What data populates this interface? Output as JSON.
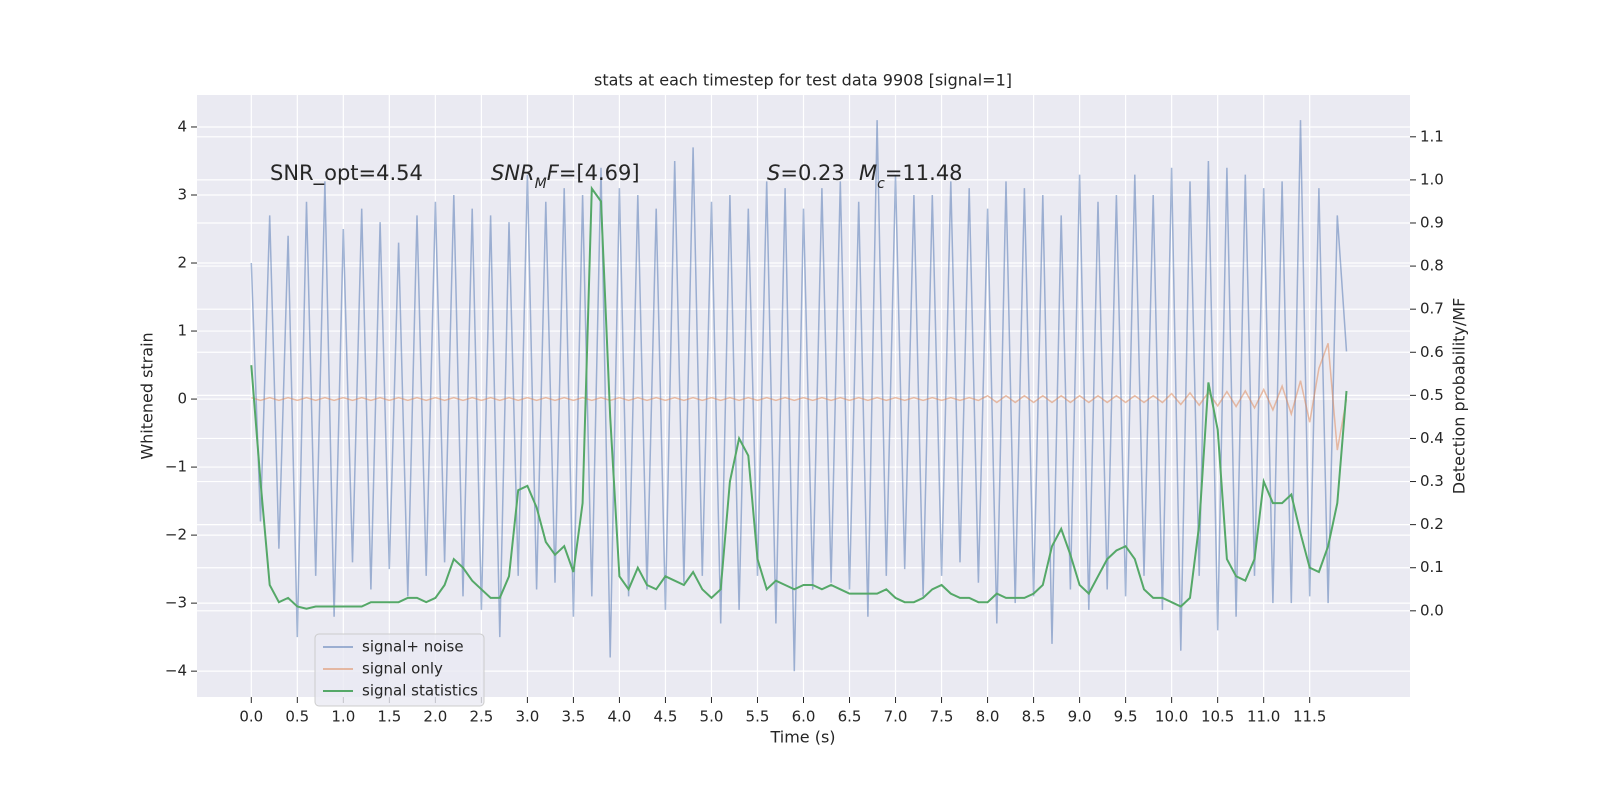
{
  "chart_data": {
    "type": "line",
    "title": "stats at each timestep for test data 9908 [signal=1]",
    "xlabel": "Time (s)",
    "ylabel": "Whitened strain",
    "y2label": "Detection probability/MF",
    "annotations": [
      {
        "parts": [
          {
            "text": "SNR_opt=4.54"
          }
        ]
      },
      {
        "parts": [
          {
            "text": "SNR",
            "italic": true
          },
          {
            "text": "M",
            "italic": true,
            "sub": true
          },
          {
            "text": "F",
            "italic": true
          },
          {
            "text": "=[4.69]"
          }
        ]
      },
      {
        "parts": [
          {
            "text": "S",
            "italic": true
          },
          {
            "text": "=0.23"
          }
        ]
      },
      {
        "parts": [
          {
            "text": "M",
            "italic": true
          },
          {
            "text": "c",
            "italic": true,
            "sub": true
          },
          {
            "text": "=11.48"
          }
        ]
      }
    ],
    "background": "#eaeaf2",
    "grid": true,
    "legend": "lower left",
    "xlim": [
      -0.59,
      12.59
    ],
    "ylim": [
      -4.38,
      4.47
    ],
    "y2lim": [
      -0.2,
      1.197
    ],
    "xticks": [
      {
        "value": 0,
        "label": "0.0"
      },
      0.5,
      {
        "value": 1,
        "label": "1.0"
      },
      1.5,
      {
        "value": 2,
        "label": "2.0"
      },
      2.5,
      {
        "value": 3,
        "label": "3.0"
      },
      3.5,
      {
        "value": 4,
        "label": "4.0"
      },
      4.5,
      {
        "value": 5,
        "label": "5.0"
      },
      5.5,
      {
        "value": 6,
        "label": "6.0"
      },
      6.5,
      {
        "value": 7,
        "label": "7.0"
      },
      7.5,
      {
        "value": 8,
        "label": "8.0"
      },
      8.5,
      {
        "value": 9,
        "label": "9.0"
      },
      9.5,
      {
        "value": 10,
        "label": "10.0"
      },
      10.5,
      {
        "value": 11,
        "label": "11.0"
      },
      11.5
    ],
    "yticks": [
      {
        "value": -4,
        "label": "−4"
      },
      {
        "value": -3,
        "label": "−3"
      },
      {
        "value": -2,
        "label": "−2"
      },
      {
        "value": -1,
        "label": "−1"
      },
      0,
      1,
      2,
      3,
      4
    ],
    "y2ticks": [
      {
        "value": 0,
        "label": "0.0"
      },
      0.1,
      0.2,
      0.3,
      0.4,
      0.5,
      0.6,
      0.7,
      0.8,
      0.9,
      {
        "value": 1,
        "label": "1.0"
      },
      1.1
    ],
    "x": [
      0,
      0.1,
      0.2,
      0.3,
      0.4,
      0.5,
      0.6,
      0.7,
      0.8,
      0.9,
      1,
      1.1,
      1.2,
      1.3,
      1.4,
      1.5,
      1.6,
      1.7,
      1.8,
      1.9,
      2,
      2.1,
      2.2,
      2.3,
      2.4,
      2.5,
      2.6,
      2.7,
      2.8,
      2.9,
      3,
      3.1,
      3.2,
      3.3,
      3.4,
      3.5,
      3.6,
      3.7,
      3.8,
      3.9,
      4,
      4.1,
      4.2,
      4.3,
      4.4,
      4.5,
      4.6,
      4.7,
      4.8,
      4.9,
      5,
      5.1,
      5.2,
      5.3,
      5.4,
      5.5,
      5.6,
      5.7,
      5.8,
      5.9,
      6,
      6.1,
      6.2,
      6.3,
      6.4,
      6.5,
      6.6,
      6.7,
      6.8,
      6.9,
      7,
      7.1,
      7.2,
      7.3,
      7.4,
      7.5,
      7.6,
      7.7,
      7.8,
      7.9,
      8,
      8.1,
      8.2,
      8.3,
      8.4,
      8.5,
      8.6,
      8.7,
      8.8,
      8.9,
      9,
      9.1,
      9.2,
      9.3,
      9.4,
      9.5,
      9.6,
      9.7,
      9.8,
      9.9,
      10,
      10.1,
      10.2,
      10.3,
      10.4,
      10.5,
      10.6,
      10.7,
      10.8,
      10.9,
      11,
      11.1,
      11.2,
      11.3,
      11.4,
      11.5,
      11.6,
      11.7,
      11.8,
      11.9
    ],
    "series": [
      {
        "name": "signal+ noise",
        "color": "#4c72b0",
        "values": [
          2.0,
          -1.8,
          2.7,
          -2.2,
          2.4,
          -3.5,
          2.9,
          -2.6,
          3.2,
          -3.2,
          2.5,
          -2.4,
          2.8,
          -2.8,
          2.6,
          -2.5,
          2.3,
          -2.9,
          2.7,
          -2.6,
          2.9,
          -2.4,
          3.0,
          -2.9,
          2.8,
          -3.1,
          2.7,
          -3.5,
          2.6,
          -2.6,
          3.3,
          -2.8,
          2.9,
          -2.7,
          3.1,
          -3.2,
          3.0,
          -2.9,
          3.4,
          -3.8,
          3.1,
          -2.9,
          3.0,
          -2.8,
          2.8,
          -3.1,
          3.5,
          -2.7,
          3.7,
          -2.6,
          2.9,
          -3.3,
          3.0,
          -3.1,
          2.8,
          -2.6,
          3.2,
          -3.3,
          3.1,
          -4.0,
          2.8,
          -2.8,
          3.1,
          -2.7,
          3.2,
          -2.8,
          2.9,
          -3.2,
          4.1,
          -2.6,
          3.3,
          -2.5,
          3.0,
          -2.9,
          3.0,
          -2.6,
          3.2,
          -2.4,
          3.1,
          -2.7,
          2.8,
          -3.3,
          3.2,
          -3.0,
          3.1,
          -2.9,
          3.0,
          -3.6,
          2.7,
          -2.8,
          3.3,
          -3.1,
          2.9,
          -2.8,
          3.0,
          -2.9,
          3.3,
          -2.6,
          3.0,
          -3.1,
          3.4,
          -3.7,
          3.2,
          -2.6,
          3.5,
          -3.4,
          3.4,
          -3.2,
          3.3,
          -2.6,
          3.1,
          -3.0,
          3.2,
          -3.0,
          4.1,
          -2.9,
          3.1,
          -3.0,
          2.7,
          0.7
        ]
      },
      {
        "name": "signal only",
        "color": "#dd8452",
        "values": [
          0.02,
          -0.02,
          0.02,
          -0.02,
          0.02,
          -0.02,
          0.02,
          -0.02,
          0.02,
          -0.02,
          0.02,
          -0.02,
          0.02,
          -0.02,
          0.02,
          -0.02,
          0.02,
          -0.02,
          0.02,
          -0.02,
          0.02,
          -0.02,
          0.02,
          -0.02,
          0.02,
          -0.02,
          0.02,
          -0.02,
          0.02,
          -0.02,
          0.02,
          -0.02,
          0.02,
          -0.02,
          0.02,
          -0.02,
          0.02,
          -0.02,
          0.02,
          -0.02,
          0.02,
          -0.02,
          0.02,
          -0.02,
          0.02,
          -0.02,
          0.02,
          -0.02,
          0.02,
          -0.02,
          0.02,
          -0.02,
          0.02,
          -0.02,
          0.02,
          -0.02,
          0.02,
          -0.02,
          0.02,
          -0.02,
          0.02,
          -0.02,
          0.02,
          -0.02,
          0.02,
          -0.02,
          0.02,
          -0.02,
          0.02,
          -0.02,
          0.02,
          -0.02,
          0.02,
          -0.02,
          0.02,
          -0.02,
          0.02,
          -0.02,
          0.02,
          -0.02,
          0.05,
          -0.05,
          0.05,
          -0.05,
          0.05,
          -0.05,
          0.05,
          -0.05,
          0.05,
          -0.05,
          0.05,
          -0.05,
          0.05,
          -0.05,
          0.05,
          -0.05,
          0.05,
          -0.05,
          0.05,
          -0.05,
          0.08,
          -0.08,
          0.09,
          -0.09,
          0.1,
          -0.1,
          0.11,
          -0.11,
          0.12,
          -0.13,
          0.14,
          -0.16,
          0.19,
          -0.22,
          0.27,
          -0.34,
          0.45,
          0.82,
          -0.75,
          0.0
        ]
      },
      {
        "name": "signal statistics",
        "color": "#55a868",
        "axis": "y2",
        "values": [
          0.57,
          0.3,
          0.06,
          0.02,
          0.03,
          0.01,
          0.005,
          0.01,
          0.01,
          0.01,
          0.01,
          0.01,
          0.01,
          0.02,
          0.02,
          0.02,
          0.02,
          0.03,
          0.03,
          0.02,
          0.03,
          0.06,
          0.12,
          0.1,
          0.07,
          0.05,
          0.03,
          0.03,
          0.08,
          0.28,
          0.29,
          0.24,
          0.16,
          0.13,
          0.15,
          0.09,
          0.25,
          0.98,
          0.95,
          0.45,
          0.08,
          0.05,
          0.1,
          0.06,
          0.05,
          0.08,
          0.07,
          0.06,
          0.09,
          0.05,
          0.03,
          0.05,
          0.3,
          0.4,
          0.36,
          0.12,
          0.05,
          0.07,
          0.06,
          0.05,
          0.06,
          0.06,
          0.05,
          0.06,
          0.05,
          0.04,
          0.04,
          0.04,
          0.04,
          0.05,
          0.03,
          0.02,
          0.02,
          0.03,
          0.05,
          0.06,
          0.04,
          0.03,
          0.03,
          0.02,
          0.02,
          0.04,
          0.03,
          0.03,
          0.03,
          0.04,
          0.06,
          0.15,
          0.19,
          0.13,
          0.06,
          0.04,
          0.08,
          0.12,
          0.14,
          0.15,
          0.12,
          0.05,
          0.03,
          0.03,
          0.02,
          0.01,
          0.03,
          0.2,
          0.53,
          0.42,
          0.12,
          0.08,
          0.07,
          0.12,
          0.3,
          0.25,
          0.25,
          0.27,
          0.18,
          0.1,
          0.09,
          0.15,
          0.25,
          0.51
        ]
      }
    ]
  }
}
